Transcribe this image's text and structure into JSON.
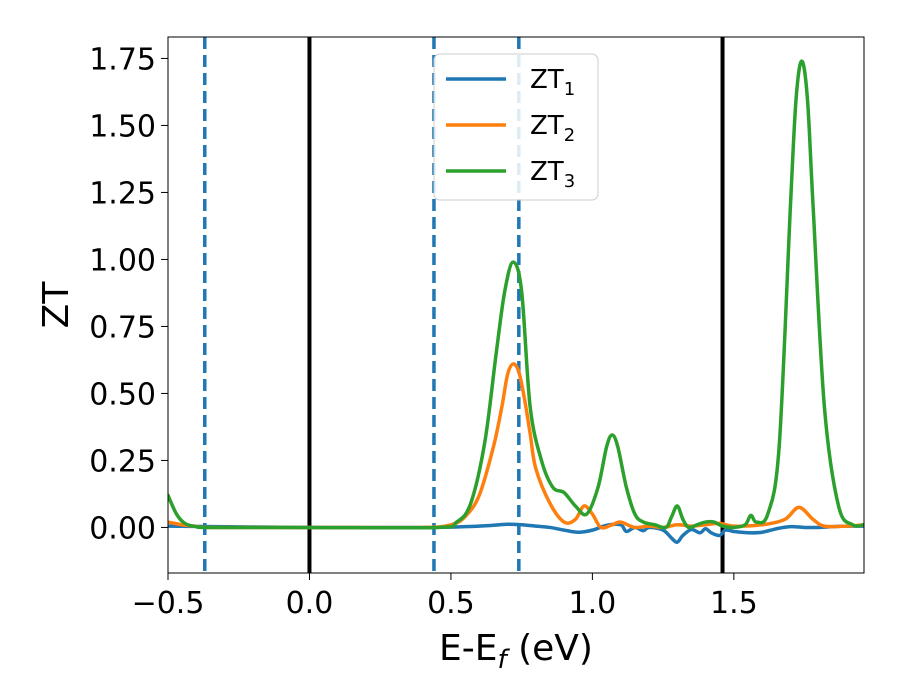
{
  "chart_data": {
    "type": "line",
    "title": "",
    "xlabel": "E-E",
    "xlabel_sub": "f",
    "xlabel_unit": " (eV)",
    "ylabel": "ZT",
    "xlim": [
      -0.5,
      1.96
    ],
    "ylim": [
      -0.17,
      1.83
    ],
    "xticks": [
      -0.5,
      0.0,
      0.5,
      1.0,
      1.5
    ],
    "xtick_labels": [
      "−0.5",
      "0.0",
      "0.5",
      "1.0",
      "1.5"
    ],
    "yticks": [
      0.0,
      0.25,
      0.5,
      0.75,
      1.0,
      1.25,
      1.5,
      1.75
    ],
    "ytick_labels": [
      "0.00",
      "0.25",
      "0.50",
      "0.75",
      "1.00",
      "1.25",
      "1.50",
      "1.75"
    ],
    "grid": false,
    "legend_position": "top-center",
    "vlines": [
      {
        "x": 0.0,
        "style": "solid",
        "color": "#000000"
      },
      {
        "x": 1.46,
        "style": "solid",
        "color": "#000000"
      },
      {
        "x": -0.37,
        "style": "dashed",
        "color": "#1f77b4"
      },
      {
        "x": 0.44,
        "style": "dashed",
        "color": "#1f77b4"
      },
      {
        "x": 0.74,
        "style": "dashed",
        "color": "#1f77b4"
      }
    ],
    "series": [
      {
        "name": "ZT",
        "name_sub": "1",
        "color": "#1f77b4",
        "x": [
          -0.5,
          0.0,
          0.4,
          0.55,
          0.65,
          0.7,
          0.75,
          0.8,
          0.85,
          0.9,
          0.95,
          1.0,
          1.05,
          1.1,
          1.12,
          1.15,
          1.18,
          1.2,
          1.25,
          1.28,
          1.3,
          1.32,
          1.35,
          1.38,
          1.4,
          1.42,
          1.45,
          1.47,
          1.5,
          1.55,
          1.6,
          1.65,
          1.7,
          1.75,
          1.8,
          1.85,
          1.9,
          1.96
        ],
        "y": [
          0.005,
          0.0,
          0.0,
          0.003,
          0.008,
          0.012,
          0.01,
          0.005,
          0.0,
          -0.01,
          -0.018,
          -0.01,
          0.008,
          0.01,
          -0.015,
          0.0,
          -0.012,
          0.0,
          -0.01,
          -0.04,
          -0.055,
          -0.03,
          -0.008,
          -0.02,
          -0.005,
          -0.02,
          -0.03,
          -0.01,
          -0.015,
          -0.02,
          -0.018,
          -0.005,
          0.003,
          0.0,
          0.0,
          0.003,
          0.005,
          0.005
        ]
      },
      {
        "name": "ZT",
        "name_sub": "2",
        "color": "#ff7f0e",
        "x": [
          -0.5,
          -0.45,
          -0.4,
          -0.35,
          0.0,
          0.4,
          0.5,
          0.55,
          0.6,
          0.65,
          0.68,
          0.7,
          0.72,
          0.74,
          0.76,
          0.78,
          0.8,
          0.85,
          0.9,
          0.94,
          0.97,
          1.0,
          1.03,
          1.07,
          1.1,
          1.15,
          1.2,
          1.25,
          1.3,
          1.35,
          1.4,
          1.45,
          1.5,
          1.6,
          1.68,
          1.73,
          1.78,
          1.82,
          1.9,
          1.96
        ],
        "y": [
          0.02,
          0.01,
          0.004,
          0.0,
          0.0,
          0.0,
          0.01,
          0.04,
          0.12,
          0.3,
          0.45,
          0.57,
          0.61,
          0.58,
          0.48,
          0.35,
          0.22,
          0.09,
          0.02,
          0.03,
          0.08,
          0.05,
          0.0,
          0.01,
          0.02,
          0.0,
          0.005,
          0.0,
          0.01,
          0.005,
          0.01,
          0.015,
          0.005,
          0.01,
          0.03,
          0.075,
          0.03,
          0.005,
          0.005,
          0.01
        ]
      },
      {
        "name": "ZT",
        "name_sub": "3",
        "color": "#2ca02c",
        "x": [
          -0.5,
          -0.47,
          -0.44,
          -0.4,
          -0.35,
          0.0,
          0.45,
          0.52,
          0.57,
          0.62,
          0.66,
          0.69,
          0.72,
          0.75,
          0.78,
          0.82,
          0.86,
          0.9,
          0.94,
          0.98,
          1.02,
          1.05,
          1.07,
          1.09,
          1.12,
          1.15,
          1.18,
          1.22,
          1.26,
          1.28,
          1.3,
          1.32,
          1.34,
          1.37,
          1.4,
          1.43,
          1.46,
          1.5,
          1.54,
          1.56,
          1.58,
          1.62,
          1.66,
          1.7,
          1.72,
          1.74,
          1.76,
          1.78,
          1.82,
          1.87,
          1.92,
          1.96
        ],
        "y": [
          0.12,
          0.05,
          0.015,
          0.003,
          0.0,
          0.0,
          0.0,
          0.02,
          0.09,
          0.32,
          0.65,
          0.88,
          0.99,
          0.88,
          0.45,
          0.25,
          0.15,
          0.13,
          0.08,
          0.05,
          0.15,
          0.3,
          0.345,
          0.3,
          0.15,
          0.05,
          0.02,
          0.01,
          0.0,
          0.04,
          0.08,
          0.03,
          0.0,
          0.01,
          0.02,
          0.02,
          0.005,
          0.0,
          0.01,
          0.045,
          0.02,
          0.05,
          0.3,
          1.2,
          1.6,
          1.74,
          1.6,
          1.2,
          0.45,
          0.08,
          0.01,
          0.01
        ]
      }
    ]
  }
}
